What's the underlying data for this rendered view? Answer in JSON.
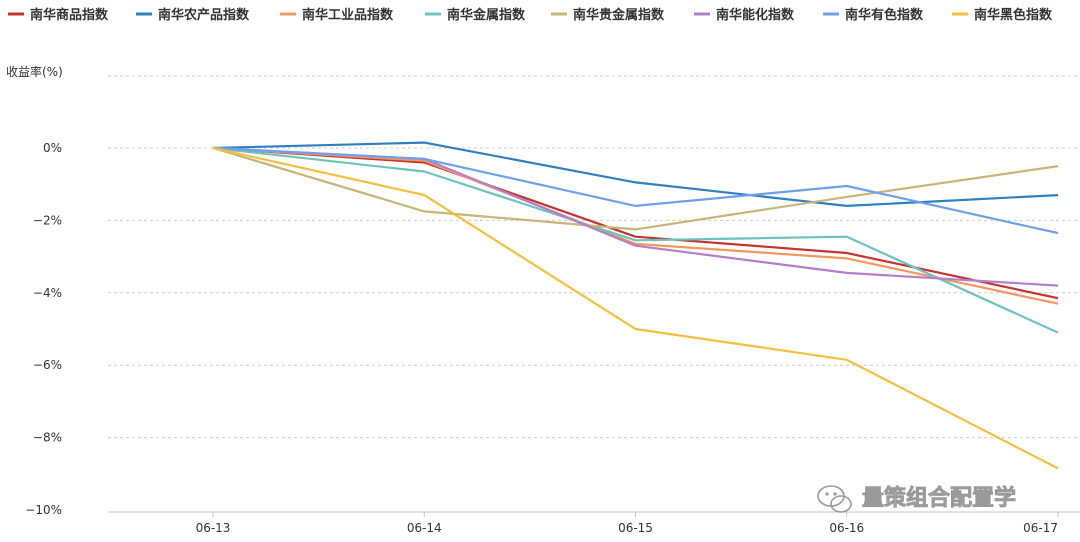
{
  "chart_data": {
    "type": "line",
    "title": "",
    "xlabel": "",
    "ylabel": "收益率(%)",
    "x": [
      "06-13",
      "06-14",
      "06-15",
      "06-16",
      "06-17"
    ],
    "yticks": [
      {
        "value": 0,
        "label": "0%"
      },
      {
        "value": -2,
        "label": "−2%"
      },
      {
        "value": -4,
        "label": "−4%"
      },
      {
        "value": -6,
        "label": "−6%"
      },
      {
        "value": -8,
        "label": "−8%"
      },
      {
        "value": -10,
        "label": "−10%"
      }
    ],
    "ylim": [
      -10,
      2
    ],
    "grid": true,
    "legend_position": "top",
    "series": [
      {
        "name": "南华商品指数",
        "color": "#c23531",
        "values": [
          0,
          -0.4,
          -2.45,
          -2.9,
          -4.15
        ]
      },
      {
        "name": "南华农产品指数",
        "color": "#2f7fc1",
        "values": [
          0,
          0.15,
          -0.95,
          -1.6,
          -1.3
        ]
      },
      {
        "name": "南华工业品指数",
        "color": "#f4975c",
        "values": [
          0,
          -0.35,
          -2.65,
          -3.05,
          -4.3
        ]
      },
      {
        "name": "南华金属指数",
        "color": "#6cc3bd",
        "values": [
          0,
          -0.65,
          -2.55,
          -2.45,
          -5.1
        ]
      },
      {
        "name": "南华贵金属指数",
        "color": "#c7b678",
        "values": [
          0,
          -1.75,
          -2.25,
          -1.35,
          -0.5
        ]
      },
      {
        "name": "南华能化指数",
        "color": "#b37fcd",
        "values": [
          0,
          -0.3,
          -2.7,
          -3.45,
          -3.8
        ]
      },
      {
        "name": "南华有色指数",
        "color": "#6e9ff0",
        "values": [
          0,
          -0.3,
          -1.6,
          -1.05,
          -2.35
        ]
      },
      {
        "name": "南华黑色指数",
        "color": "#f5be3e",
        "values": [
          0,
          -1.3,
          -5.0,
          -5.85,
          -8.85
        ]
      }
    ]
  },
  "watermark": {
    "text": "量策组合配置学",
    "icon": "wechat-icon"
  }
}
